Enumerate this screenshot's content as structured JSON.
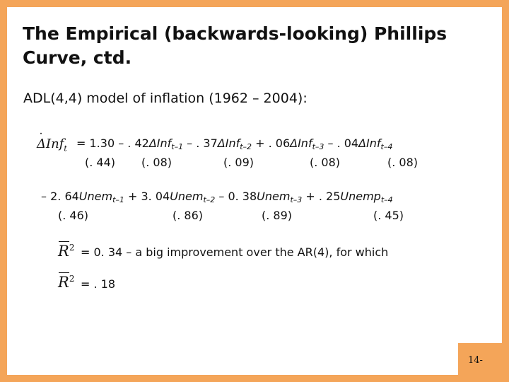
{
  "slide": {
    "title": "The Empirical (backwards-looking) Phillips Curve, ctd.",
    "subtitle": "ADL(4,4) model of inflation (1962 – 2004):",
    "equation": {
      "lhs": "ΔInf",
      "lhs_sub": "t",
      "line1_parts": [
        {
          "text": "= 1.30 – . 42"
        },
        {
          "it": "ΔInf",
          "sub": "t–1"
        },
        {
          "text": " – . 37"
        },
        {
          "it": "ΔInf",
          "sub": "t–2"
        },
        {
          "text": " + . 06"
        },
        {
          "it": "ΔInf",
          "sub": "t–3"
        },
        {
          "text": " – . 04"
        },
        {
          "it": "ΔInf",
          "sub": "t–4"
        }
      ],
      "line1_se": [
        "(. 44)",
        "(. 08)",
        "(. 09)",
        "(. 08)",
        "(. 08)"
      ],
      "line2_parts": [
        {
          "text": "– 2. 64"
        },
        {
          "it": "Unem",
          "sub": "t–1"
        },
        {
          "text": " + 3. 04"
        },
        {
          "it": "Unem",
          "sub": "t–2"
        },
        {
          "text": " – 0. 38"
        },
        {
          "it": "Unem",
          "sub": "t–3"
        },
        {
          "text": " + . 25"
        },
        {
          "it": "Unemp",
          "sub": "t–4"
        }
      ],
      "line2_se": [
        "(. 46)",
        "(. 86)",
        "(. 89)",
        "(. 45)"
      ]
    },
    "r2_symbol": "R",
    "r2_power": "2",
    "r2_statement": "= 0. 34 – a big improvement over the AR(4), for which",
    "ar4_r2": "= . 18",
    "page_number": "14-"
  }
}
